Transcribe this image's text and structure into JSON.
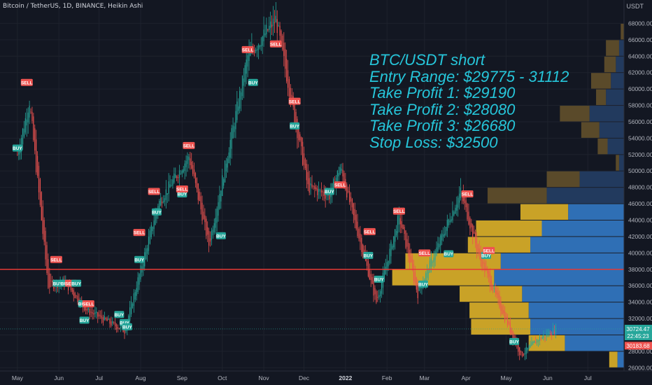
{
  "header": {
    "symbol_line": "Bitcoin / TetherUS, 1D, BINANCE, Heikin Ashi"
  },
  "price_axis": {
    "unit": "USDT"
  },
  "annotation": {
    "lines": [
      "BTC/USDT short",
      "Entry Range: $29775 - 31112",
      "Take Profit 1: $29190",
      "Take Profit 2: $28080",
      "Take Profit 3: $26680",
      "Stop Loss: $32500"
    ]
  },
  "badges": {
    "last_price": "30724.47",
    "countdown": "22:45:23",
    "level_price": "30183.68"
  },
  "colors": {
    "background": "#131722",
    "up": "#26a69a",
    "down": "#ef5350",
    "annotation": "#26c6da",
    "vp_up": "#2962ff",
    "vp_down": "#c9a227",
    "support_line": "#e53935"
  },
  "chart_data": {
    "type": "candlestick",
    "style": "Heikin Ashi",
    "interval": "1D",
    "exchange": "BINANCE",
    "ylim": [
      25600,
      70000
    ],
    "y_ticks": [
      26000,
      28000,
      30000,
      32000,
      34000,
      36000,
      38000,
      40000,
      42000,
      44000,
      46000,
      48000,
      50000,
      52000,
      54000,
      56000,
      58000,
      60000,
      62000,
      64000,
      66000,
      68000
    ],
    "x_ticks": [
      "May",
      "Jun",
      "Jul",
      "Aug",
      "Sep",
      "Oct",
      "Nov",
      "Dec",
      "2022",
      "Feb",
      "Mar",
      "Apr",
      "May",
      "Jun",
      "Jul"
    ],
    "price_path": [
      {
        "date": "2021-05-01",
        "price": 52000
      },
      {
        "date": "2021-05-10",
        "price": 58500
      },
      {
        "date": "2021-05-24",
        "price": 36000
      },
      {
        "date": "2021-06-05",
        "price": 36500
      },
      {
        "date": "2021-06-22",
        "price": 33000
      },
      {
        "date": "2021-07-20",
        "price": 30500
      },
      {
        "date": "2021-08-14",
        "price": 46000
      },
      {
        "date": "2021-09-06",
        "price": 51800
      },
      {
        "date": "2021-09-21",
        "price": 41000
      },
      {
        "date": "2021-10-20",
        "price": 64000
      },
      {
        "date": "2021-11-10",
        "price": 68500
      },
      {
        "date": "2021-12-04",
        "price": 48000
      },
      {
        "date": "2021-12-20",
        "price": 47000
      },
      {
        "date": "2021-12-28",
        "price": 50500
      },
      {
        "date": "2022-01-24",
        "price": 34000
      },
      {
        "date": "2022-02-10",
        "price": 44500
      },
      {
        "date": "2022-02-24",
        "price": 35000
      },
      {
        "date": "2022-03-28",
        "price": 47500
      },
      {
        "date": "2022-04-11",
        "price": 39500
      },
      {
        "date": "2022-05-12",
        "price": 27500
      },
      {
        "date": "2022-05-25",
        "price": 29500
      },
      {
        "date": "2022-06-07",
        "price": 30700
      }
    ],
    "signals": [
      {
        "label": "SELL",
        "date": "2021-05-08",
        "price": 60800
      },
      {
        "label": "BUY",
        "date": "2021-05-01",
        "price": 52800
      },
      {
        "label": "SELL",
        "date": "2021-05-30",
        "price": 39200
      },
      {
        "label": "BUY",
        "date": "2021-05-31",
        "price": 36300
      },
      {
        "label": "BUY",
        "date": "2021-06-06",
        "price": 36300
      },
      {
        "label": "SELL",
        "date": "2021-06-10",
        "price": 36300
      },
      {
        "label": "BUY",
        "date": "2021-06-14",
        "price": 36300
      },
      {
        "label": "BUY",
        "date": "2021-06-19",
        "price": 33800
      },
      {
        "label": "BUY",
        "date": "2021-06-20",
        "price": 31800
      },
      {
        "label": "SELL",
        "date": "2021-06-23",
        "price": 33800
      },
      {
        "label": "BUY",
        "date": "2021-07-16",
        "price": 32500
      },
      {
        "label": "BUY",
        "date": "2021-07-20",
        "price": 31500
      },
      {
        "label": "BUY",
        "date": "2021-07-22",
        "price": 31000
      },
      {
        "label": "SELL",
        "date": "2021-07-31",
        "price": 42500
      },
      {
        "label": "BUY",
        "date": "2021-07-31",
        "price": 39200
      },
      {
        "label": "SELL",
        "date": "2021-08-11",
        "price": 47500
      },
      {
        "label": "BUY",
        "date": "2021-08-13",
        "price": 45000
      },
      {
        "label": "BUY",
        "date": "2021-09-01",
        "price": 47200
      },
      {
        "label": "SELL",
        "date": "2021-09-06",
        "price": 53100
      },
      {
        "label": "SELL",
        "date": "2021-09-01",
        "price": 47800
      },
      {
        "label": "BUY",
        "date": "2021-09-30",
        "price": 42100
      },
      {
        "label": "SELL",
        "date": "2021-10-20",
        "price": 64800
      },
      {
        "label": "SELL",
        "date": "2021-11-10",
        "price": 65500
      },
      {
        "label": "BUY",
        "date": "2021-10-24",
        "price": 60800
      },
      {
        "label": "SELL",
        "date": "2021-11-24",
        "price": 58500
      },
      {
        "label": "BUY",
        "date": "2021-11-24",
        "price": 55500
      },
      {
        "label": "BUY",
        "date": "2021-12-20",
        "price": 47500
      },
      {
        "label": "SELL",
        "date": "2021-12-28",
        "price": 48300
      },
      {
        "label": "SELL",
        "date": "2022-01-19",
        "price": 42600
      },
      {
        "label": "BUY",
        "date": "2022-01-18",
        "price": 39700
      },
      {
        "label": "BUY",
        "date": "2022-01-26",
        "price": 36800
      },
      {
        "label": "SELL",
        "date": "2022-02-10",
        "price": 45100
      },
      {
        "label": "SELL",
        "date": "2022-03-01",
        "price": 40000
      },
      {
        "label": "BUY",
        "date": "2022-02-28",
        "price": 36200
      },
      {
        "label": "BUY",
        "date": "2022-03-19",
        "price": 39900
      },
      {
        "label": "SELL",
        "date": "2022-04-02",
        "price": 47200
      },
      {
        "label": "BUY",
        "date": "2022-04-16",
        "price": 39700
      },
      {
        "label": "SELL",
        "date": "2022-04-18",
        "price": 40300
      },
      {
        "label": "BUY",
        "date": "2022-05-07",
        "price": 29200
      }
    ],
    "horizontal_lines": [
      {
        "price": 38000,
        "color": "#e53935"
      },
      {
        "price": 30724.47,
        "color": "#26a69a"
      }
    ],
    "volume_profile": [
      {
        "price": 67000,
        "up": 0.02,
        "down": 0.0
      },
      {
        "price": 65000,
        "up": 0.08,
        "down": 0.03
      },
      {
        "price": 63000,
        "up": 0.07,
        "down": 0.05
      },
      {
        "price": 61000,
        "up": 0.12,
        "down": 0.08
      },
      {
        "price": 59000,
        "up": 0.06,
        "down": 0.11
      },
      {
        "price": 57000,
        "up": 0.18,
        "down": 0.21
      },
      {
        "price": 55000,
        "up": 0.11,
        "down": 0.15
      },
      {
        "price": 53000,
        "up": 0.06,
        "down": 0.1
      },
      {
        "price": 51000,
        "up": 0.02,
        "down": 0.03
      },
      {
        "price": 49000,
        "up": 0.2,
        "down": 0.27
      },
      {
        "price": 47000,
        "up": 0.36,
        "down": 0.47
      },
      {
        "price": 45000,
        "up": 0.29,
        "down": 0.34
      },
      {
        "price": 43000,
        "up": 0.4,
        "down": 0.5
      },
      {
        "price": 41000,
        "up": 0.38,
        "down": 0.57
      },
      {
        "price": 39000,
        "up": 0.58,
        "down": 0.75
      },
      {
        "price": 37000,
        "up": 0.62,
        "down": 0.79
      },
      {
        "price": 35000,
        "up": 0.38,
        "down": 0.62
      },
      {
        "price": 33000,
        "up": 0.36,
        "down": 0.58
      },
      {
        "price": 31000,
        "up": 0.36,
        "down": 0.57
      },
      {
        "price": 29000,
        "up": 0.22,
        "down": 0.36
      },
      {
        "price": 27000,
        "up": 0.05,
        "down": 0.04
      }
    ]
  }
}
